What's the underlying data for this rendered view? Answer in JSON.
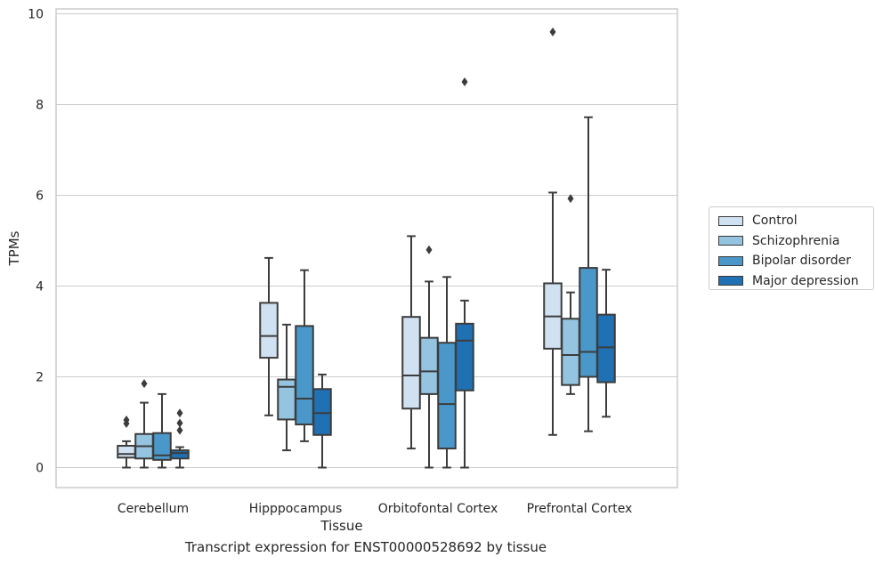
{
  "chart_data": {
    "type": "box",
    "caption": "Transcript expression for ENST00000528692 by tissue",
    "xlabel": "Tissue",
    "ylabel": "TPMs",
    "ylim": [
      -0.45,
      10.15
    ],
    "yticks": [
      0,
      2,
      4,
      6,
      8,
      10
    ],
    "grid": "horizontal",
    "legend_position": "right",
    "categories": [
      "Cerebellum",
      "Hipppocampus",
      "Orbitofontal Cortex",
      "Prefrontal Cortex"
    ],
    "series": [
      {
        "name": "Control",
        "color": "#d0e1f2",
        "boxes": [
          {
            "whisker_low": 0.0,
            "q1": 0.22,
            "median": 0.3,
            "q3": 0.48,
            "whisker_high": 0.58,
            "outliers": [
              0.97,
              1.05
            ]
          },
          {
            "whisker_low": 1.15,
            "q1": 2.42,
            "median": 2.9,
            "q3": 3.63,
            "whisker_high": 4.62,
            "outliers": []
          },
          {
            "whisker_low": 0.42,
            "q1": 1.3,
            "median": 2.03,
            "q3": 3.32,
            "whisker_high": 5.1,
            "outliers": []
          },
          {
            "whisker_low": 0.72,
            "q1": 2.62,
            "median": 3.33,
            "q3": 4.06,
            "whisker_high": 6.06,
            "outliers": [
              9.6
            ]
          }
        ]
      },
      {
        "name": "Schizophrenia",
        "color": "#94c4df",
        "boxes": [
          {
            "whisker_low": 0.0,
            "q1": 0.2,
            "median": 0.47,
            "q3": 0.74,
            "whisker_high": 1.43,
            "outliers": [
              1.85
            ]
          },
          {
            "whisker_low": 0.38,
            "q1": 1.06,
            "median": 1.78,
            "q3": 1.94,
            "whisker_high": 3.15,
            "outliers": []
          },
          {
            "whisker_low": 0.0,
            "q1": 1.62,
            "median": 2.12,
            "q3": 2.86,
            "whisker_high": 4.1,
            "outliers": [
              4.8
            ]
          },
          {
            "whisker_low": 1.62,
            "q1": 1.82,
            "median": 2.48,
            "q3": 3.28,
            "whisker_high": 3.86,
            "outliers": [
              5.93
            ]
          }
        ]
      },
      {
        "name": "Bipolar disorder",
        "color": "#4a98c9",
        "boxes": [
          {
            "whisker_low": 0.0,
            "q1": 0.17,
            "median": 0.27,
            "q3": 0.76,
            "whisker_high": 1.62,
            "outliers": []
          },
          {
            "whisker_low": 0.58,
            "q1": 0.95,
            "median": 1.52,
            "q3": 3.12,
            "whisker_high": 4.35,
            "outliers": []
          },
          {
            "whisker_low": 0.0,
            "q1": 0.42,
            "median": 1.4,
            "q3": 2.75,
            "whisker_high": 4.2,
            "outliers": []
          },
          {
            "whisker_low": 0.8,
            "q1": 2.0,
            "median": 2.55,
            "q3": 4.4,
            "whisker_high": 7.72,
            "outliers": []
          }
        ]
      },
      {
        "name": "Major depression",
        "color": "#2070b4",
        "boxes": [
          {
            "whisker_low": 0.0,
            "q1": 0.2,
            "median": 0.32,
            "q3": 0.38,
            "whisker_high": 0.45,
            "outliers": [
              0.82,
              0.98,
              1.2
            ]
          },
          {
            "whisker_low": 0.0,
            "q1": 0.72,
            "median": 1.2,
            "q3": 1.73,
            "whisker_high": 2.05,
            "outliers": []
          },
          {
            "whisker_low": 0.0,
            "q1": 1.7,
            "median": 2.8,
            "q3": 3.17,
            "whisker_high": 3.68,
            "outliers": [
              8.5
            ]
          },
          {
            "whisker_low": 1.12,
            "q1": 1.88,
            "median": 2.65,
            "q3": 3.37,
            "whisker_high": 4.36,
            "outliers": []
          }
        ]
      }
    ]
  }
}
